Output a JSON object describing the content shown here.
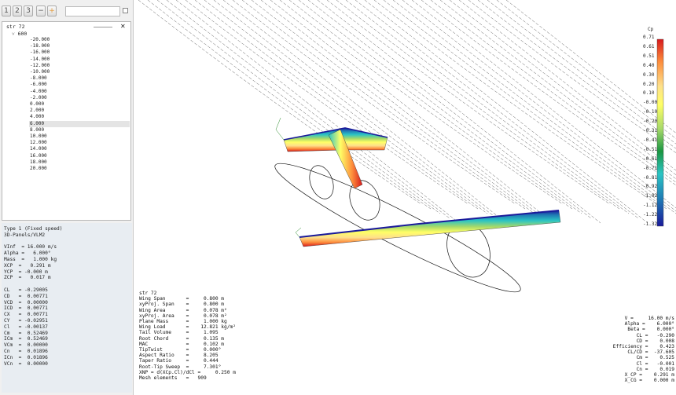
{
  "toolbar": {
    "buttons": [
      "1",
      "2",
      "3",
      "−",
      "+"
    ],
    "search_value": ""
  },
  "tree": {
    "plane": "str 72",
    "polar": "600",
    "opps": [
      "-20.000",
      "-18.000",
      "-16.000",
      "-14.000",
      "-12.000",
      "-10.000",
      "-8.000",
      "-6.000",
      "-4.000",
      "-2.000",
      "0.000",
      "2.000",
      "4.000",
      "6.000",
      "8.000",
      "10.000",
      "12.000",
      "14.000",
      "16.000",
      "18.000",
      "20.000"
    ],
    "selected_index": 13
  },
  "props": [
    "Type 1 (Fixed speed)",
    "3D-Panels/VLM2",
    "",
    "VInf  = 16.000 m/s",
    "Alpha =   6.000°",
    "Mass  =   1.000 kg",
    "XCP  =   0.291 m",
    "YCP  = -0.000 m",
    "ZCP  =   0.017 m",
    "",
    "CL   = -0.29005",
    "CD   =  0.00771",
    "VCD  =  0.00000",
    "ICD  =  0.00771",
    "CX   =  0.00771",
    "CY   = -0.02951",
    "Cl   = -0.00137",
    "Cm   =  0.52469",
    "ICm  =  0.52469",
    "VCm  =  0.00000",
    "Cn   =  0.01896",
    "ICn  =  0.01896",
    "VCn  =  0.00000"
  ],
  "info_left": [
    "str 72",
    "Wing Span       =     0.800 m",
    "xyProj. Span    =     0.800 m",
    "Wing Area       =     0.078 m²",
    "xyProj. Area    =     0.078 m²",
    "Plane Mass      =     1.000 kg",
    "Wing Load       =    12.821 kg/m²",
    "Tail Volume     =     1.095",
    "Root Chord      =     0.135 m",
    "MAC             =     0.102 m",
    "TipTwist        =     0.000°",
    "Aspect Ratio    =     8.205",
    "Taper Ratio     =     0.444",
    "Root-Tip Sweep  =     7.301°",
    "XNP = d(XCp.Cl)/dCl =     0.250 m",
    "Mesh elements   =   909"
  ],
  "info_right": [
    "V =     16.00 m/s",
    "Alpha =    6.000°",
    "Beta =    0.000°",
    "CL =   -0.290",
    "CD =    0.008",
    "Efficiency =    0.423",
    "CL/CD =  -37.605",
    "Cm =    0.525",
    "Cl =   -0.001",
    "Cn =    0.019",
    "X_CP =    0.291 m",
    "X_CG =    0.000 m"
  ],
  "legend": {
    "title": "Cp",
    "labels": [
      "0.71",
      "0.61",
      "0.51",
      "0.40",
      "0.30",
      "0.20",
      "0.10",
      "-0.00",
      "-0.10",
      "-0.20",
      "-0.31",
      "-0.41",
      "-0.51",
      "-0.61",
      "-0.71",
      "-0.81",
      "-0.92",
      "-1.02",
      "-1.12",
      "-1.22",
      "-1.32"
    ],
    "colors": [
      "#d7191c",
      "#fd8d3c",
      "#fee08b",
      "#ffff66",
      "#a6d96a",
      "#1a9641",
      "#2bc4c4",
      "#1f78b4",
      "#1a1a9a"
    ]
  }
}
